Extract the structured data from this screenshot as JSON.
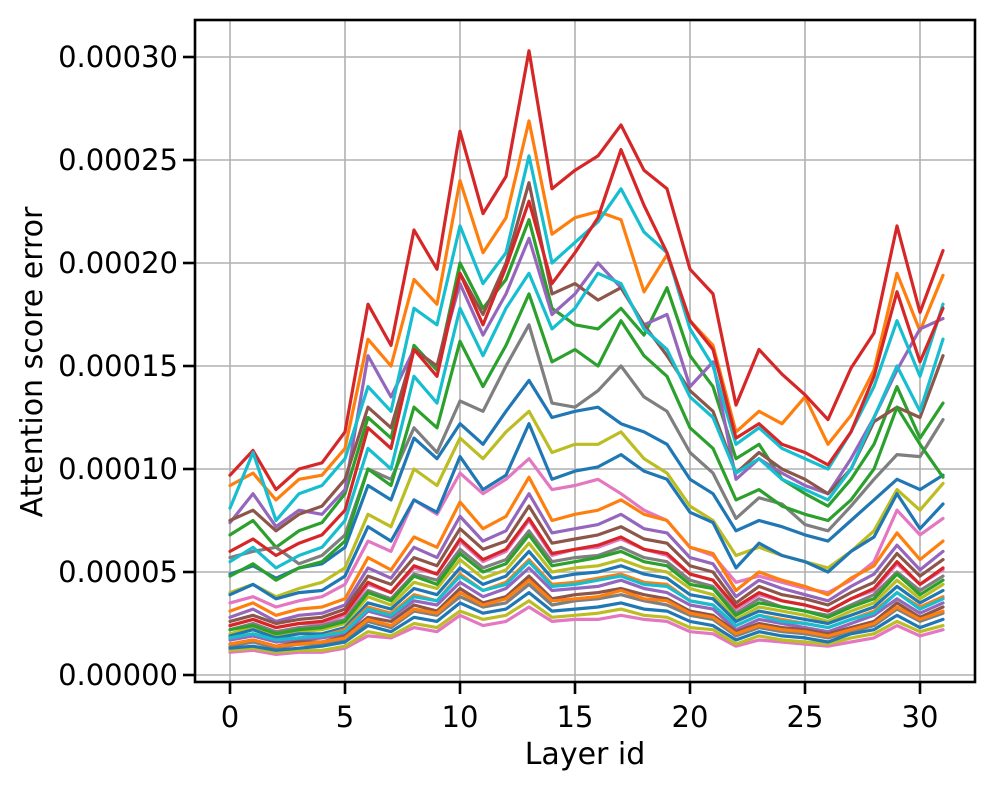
{
  "figure": {
    "background": "#ffffff"
  },
  "chart_data": {
    "type": "line",
    "title": "",
    "xlabel": "Layer id",
    "ylabel": "Attention score error",
    "grid": true,
    "grid_color": "#b0b0b0",
    "legend": "none",
    "x": [
      0,
      1,
      2,
      3,
      4,
      5,
      6,
      7,
      8,
      9,
      10,
      11,
      12,
      13,
      14,
      15,
      16,
      17,
      18,
      19,
      20,
      21,
      22,
      23,
      24,
      25,
      26,
      27,
      28,
      29,
      30,
      31
    ],
    "xlim": [
      -1.55,
      32.55
    ],
    "ylim": [
      0,
      0.00031
    ],
    "xticks": [
      0,
      5,
      10,
      15,
      20,
      25,
      30
    ],
    "ytick_values": [
      0,
      5e-05,
      0.0001,
      0.00015,
      0.0002,
      0.00025,
      0.0003
    ],
    "ytick_labels": [
      "0.00000",
      "0.00005",
      "0.00010",
      "0.00015",
      "0.00020",
      "0.00025",
      "0.00030"
    ],
    "value_scale": 1e-06,
    "value_scale_note": "series values are in units of 1e-6 (multiply by value_scale for axis units)",
    "series": [
      {
        "name": "series-0",
        "color": "#1f77b4",
        "values": [
          49,
          53,
          47,
          52,
          54,
          62,
          92,
          85,
          115,
          105,
          122,
          112,
          128,
          143,
          125,
          128,
          130,
          122,
          118,
          112,
          95,
          88,
          70,
          75,
          72,
          68,
          65,
          75,
          85,
          95,
          90,
          97
        ]
      },
      {
        "name": "series-1",
        "color": "#ff7f0e",
        "values": [
          92,
          98,
          85,
          95,
          97,
          110,
          163,
          150,
          192,
          180,
          240,
          205,
          222,
          269,
          214,
          222,
          225,
          221,
          186,
          204,
          172,
          160,
          118,
          128,
          122,
          135,
          112,
          126,
          148,
          195,
          167,
          194
        ]
      },
      {
        "name": "series-2",
        "color": "#2ca02c",
        "values": [
          68,
          75,
          62,
          70,
          74,
          88,
          125,
          115,
          160,
          148,
          200,
          178,
          192,
          221,
          178,
          170,
          168,
          178,
          165,
          188,
          155,
          140,
          105,
          112,
          95,
          88,
          82,
          95,
          112,
          140,
          115,
          132
        ]
      },
      {
        "name": "series-3",
        "color": "#d62728",
        "values": [
          97,
          109,
          90,
          100,
          103,
          118,
          180,
          160,
          216,
          197,
          264,
          224,
          242,
          303,
          236,
          245,
          252,
          267,
          245,
          236,
          197,
          185,
          131,
          158,
          146,
          136,
          124,
          149,
          166,
          218,
          176,
          206
        ]
      },
      {
        "name": "series-4",
        "color": "#9467bd",
        "values": [
          74,
          88,
          72,
          80,
          78,
          90,
          155,
          135,
          158,
          150,
          190,
          165,
          185,
          212,
          175,
          185,
          200,
          188,
          170,
          175,
          140,
          152,
          95,
          105,
          98,
          92,
          88,
          105,
          125,
          148,
          168,
          173
        ]
      },
      {
        "name": "series-5",
        "color": "#8c564b",
        "values": [
          75,
          80,
          70,
          78,
          82,
          95,
          130,
          120,
          158,
          150,
          195,
          175,
          200,
          239,
          185,
          190,
          182,
          188,
          170,
          155,
          138,
          128,
          98,
          108,
          100,
          95,
          88,
          100,
          123,
          130,
          125,
          155
        ]
      },
      {
        "name": "series-6",
        "color": "#e377c2",
        "values": [
          35,
          38,
          33,
          36,
          38,
          44,
          65,
          60,
          85,
          78,
          98,
          88,
          95,
          105,
          90,
          92,
          95,
          88,
          80,
          75,
          62,
          58,
          45,
          48,
          45,
          42,
          40,
          46,
          55,
          80,
          68,
          76
        ]
      },
      {
        "name": "series-7",
        "color": "#7f7f7f",
        "values": [
          57,
          60,
          62,
          54,
          58,
          68,
          100,
          95,
          120,
          108,
          133,
          128,
          150,
          170,
          132,
          130,
          138,
          150,
          135,
          128,
          108,
          98,
          76,
          86,
          83,
          73,
          70,
          82,
          95,
          107,
          106,
          124
        ]
      },
      {
        "name": "series-8",
        "color": "#bcbd22",
        "values": [
          40,
          44,
          38,
          42,
          45,
          52,
          78,
          72,
          100,
          92,
          115,
          105,
          118,
          128,
          108,
          112,
          112,
          118,
          105,
          98,
          82,
          75,
          58,
          62,
          58,
          55,
          52,
          60,
          70,
          90,
          80,
          93
        ]
      },
      {
        "name": "series-9",
        "color": "#17becf",
        "values": [
          81,
          108,
          75,
          88,
          92,
          105,
          140,
          128,
          178,
          170,
          218,
          190,
          205,
          252,
          200,
          210,
          220,
          236,
          215,
          205,
          168,
          150,
          112,
          120,
          110,
          105,
          100,
          118,
          140,
          172,
          145,
          180
        ]
      },
      {
        "name": "series-10",
        "color": "#1f77b4",
        "values": [
          39,
          44,
          37,
          40,
          41,
          48,
          72,
          65,
          85,
          79,
          106,
          90,
          97,
          122,
          95,
          99,
          101,
          107,
          99,
          95,
          79,
          74,
          52,
          64,
          58,
          55,
          50,
          60,
          67,
          88,
          71,
          83
        ]
      },
      {
        "name": "series-11",
        "color": "#ff7f0e",
        "values": [
          31,
          35,
          29,
          32,
          33,
          37,
          57,
          51,
          67,
          62,
          84,
          71,
          77,
          96,
          75,
          78,
          80,
          85,
          78,
          75,
          62,
          59,
          41,
          50,
          46,
          43,
          39,
          47,
          53,
          69,
          56,
          65
        ]
      },
      {
        "name": "series-12",
        "color": "#2ca02c",
        "values": [
          48,
          54,
          46,
          52,
          55,
          65,
          100,
          92,
          130,
          120,
          162,
          140,
          160,
          185,
          152,
          158,
          150,
          172,
          155,
          145,
          120,
          110,
          85,
          90,
          82,
          78,
          75,
          85,
          100,
          130,
          112,
          96
        ]
      },
      {
        "name": "series-13",
        "color": "#d62728",
        "values": [
          60,
          66,
          58,
          64,
          68,
          80,
          120,
          110,
          158,
          145,
          195,
          170,
          198,
          230,
          190,
          205,
          222,
          255,
          228,
          205,
          172,
          158,
          115,
          122,
          112,
          108,
          102,
          118,
          145,
          186,
          152,
          178
        ]
      },
      {
        "name": "series-14",
        "color": "#9467bd",
        "values": [
          28,
          32,
          26,
          29,
          30,
          34,
          52,
          47,
          62,
          57,
          77,
          65,
          70,
          88,
          69,
          71,
          73,
          78,
          71,
          69,
          57,
          54,
          38,
          46,
          42,
          39,
          36,
          43,
          49,
          63,
          51,
          60
        ]
      },
      {
        "name": "series-15",
        "color": "#8c564b",
        "values": [
          26,
          29,
          25,
          27,
          28,
          32,
          48,
          44,
          57,
          53,
          71,
          61,
          65,
          82,
          64,
          66,
          68,
          72,
          66,
          64,
          53,
          50,
          35,
          43,
          39,
          37,
          34,
          40,
          45,
          59,
          48,
          56
        ]
      },
      {
        "name": "series-16",
        "color": "#e377c2",
        "values": [
          24,
          27,
          23,
          25,
          25,
          29,
          44,
          40,
          52,
          49,
          65,
          55,
          60,
          75,
          58,
          61,
          62,
          66,
          61,
          58,
          49,
          46,
          32,
          39,
          36,
          34,
          31,
          37,
          41,
          54,
          44,
          51
        ]
      },
      {
        "name": "series-17",
        "color": "#7f7f7f",
        "values": [
          22,
          25,
          21,
          23,
          24,
          27,
          41,
          37,
          49,
          46,
          61,
          52,
          56,
          70,
          55,
          57,
          58,
          62,
          57,
          55,
          46,
          43,
          30,
          37,
          33,
          31,
          29,
          34,
          39,
          50,
          41,
          48
        ]
      },
      {
        "name": "series-18",
        "color": "#bcbd22",
        "values": [
          20,
          23,
          19,
          21,
          22,
          25,
          38,
          34,
          45,
          42,
          56,
          47,
          51,
          64,
          50,
          52,
          53,
          56,
          52,
          50,
          42,
          39,
          27,
          33,
          31,
          29,
          26,
          31,
          35,
          46,
          37,
          44
        ]
      },
      {
        "name": "series-19",
        "color": "#17becf",
        "values": [
          55,
          62,
          52,
          58,
          62,
          75,
          110,
          100,
          145,
          132,
          178,
          155,
          178,
          195,
          168,
          178,
          195,
          190,
          168,
          158,
          135,
          125,
          98,
          105,
          95,
          90,
          85,
          100,
          125,
          150,
          128,
          163
        ]
      },
      {
        "name": "series-20",
        "color": "#1f77b4",
        "values": [
          19,
          22,
          18,
          20,
          20,
          23,
          35,
          32,
          42,
          39,
          52,
          44,
          48,
          60,
          47,
          49,
          50,
          53,
          49,
          47,
          39,
          37,
          26,
          31,
          29,
          27,
          25,
          29,
          33,
          43,
          35,
          41
        ]
      },
      {
        "name": "series-21",
        "color": "#ff7f0e",
        "values": [
          18,
          20,
          17,
          18,
          19,
          22,
          33,
          30,
          39,
          36,
          49,
          41,
          45,
          56,
          44,
          45,
          47,
          49,
          45,
          44,
          36,
          34,
          24,
          29,
          27,
          25,
          23,
          27,
          31,
          40,
          33,
          38
        ]
      },
      {
        "name": "series-22",
        "color": "#2ca02c",
        "values": [
          22,
          24,
          20,
          22,
          23,
          26,
          40,
          36,
          48,
          44,
          59,
          50,
          54,
          68,
          53,
          55,
          57,
          60,
          55,
          53,
          44,
          42,
          29,
          35,
          33,
          31,
          28,
          33,
          37,
          49,
          39,
          46
        ]
      },
      {
        "name": "series-23",
        "color": "#d62728",
        "values": [
          24,
          27,
          23,
          25,
          26,
          30,
          45,
          40,
          53,
          49,
          66,
          56,
          61,
          76,
          59,
          61,
          63,
          67,
          61,
          59,
          49,
          46,
          33,
          40,
          36,
          34,
          31,
          37,
          42,
          55,
          44,
          52
        ]
      },
      {
        "name": "series-24",
        "color": "#9467bd",
        "values": [
          17,
          19,
          16,
          17,
          18,
          20,
          31,
          28,
          36,
          34,
          45,
          38,
          42,
          52,
          41,
          42,
          43,
          46,
          42,
          40,
          34,
          32,
          22,
          27,
          25,
          23,
          21,
          25,
          29,
          37,
          30,
          35
        ]
      },
      {
        "name": "series-25",
        "color": "#8c564b",
        "values": [
          15,
          17,
          14,
          16,
          16,
          19,
          28,
          26,
          34,
          31,
          42,
          35,
          38,
          48,
          37,
          39,
          40,
          42,
          39,
          37,
          31,
          29,
          21,
          25,
          23,
          22,
          20,
          23,
          26,
          35,
          28,
          33
        ]
      },
      {
        "name": "series-26",
        "color": "#e377c2",
        "values": [
          11,
          12,
          10,
          11,
          11,
          13,
          19,
          18,
          23,
          21,
          29,
          24,
          26,
          33,
          26,
          27,
          27,
          29,
          27,
          26,
          21,
          20,
          14,
          17,
          16,
          15,
          14,
          16,
          18,
          24,
          19,
          22
        ]
      },
      {
        "name": "series-27",
        "color": "#7f7f7f",
        "values": [
          14,
          16,
          13,
          15,
          15,
          17,
          26,
          23,
          31,
          29,
          38,
          33,
          35,
          44,
          34,
          36,
          37,
          39,
          36,
          34,
          29,
          27,
          19,
          23,
          21,
          20,
          18,
          21,
          24,
          32,
          26,
          30
        ]
      },
      {
        "name": "series-28",
        "color": "#bcbd22",
        "values": [
          12,
          13,
          11,
          12,
          12,
          14,
          21,
          19,
          25,
          23,
          31,
          27,
          29,
          36,
          28,
          29,
          30,
          32,
          29,
          28,
          23,
          22,
          15,
          19,
          17,
          16,
          15,
          18,
          20,
          26,
          21,
          24
        ]
      },
      {
        "name": "series-29",
        "color": "#17becf",
        "values": [
          18,
          20,
          17,
          18,
          19,
          21,
          32,
          29,
          38,
          36,
          48,
          41,
          44,
          55,
          43,
          44,
          46,
          48,
          44,
          43,
          36,
          34,
          24,
          29,
          26,
          25,
          23,
          27,
          30,
          40,
          32,
          37
        ]
      },
      {
        "name": "series-30",
        "color": "#1f77b4",
        "values": [
          13,
          14,
          12,
          13,
          14,
          16,
          24,
          21,
          28,
          26,
          35,
          30,
          32,
          40,
          31,
          32,
          33,
          35,
          32,
          31,
          26,
          24,
          17,
          21,
          19,
          18,
          16,
          20,
          22,
          29,
          23,
          27
        ]
      },
      {
        "name": "series-31",
        "color": "#ff7f0e",
        "values": [
          15,
          17,
          14,
          15,
          16,
          18,
          27,
          24,
          32,
          30,
          40,
          34,
          37,
          46,
          36,
          37,
          38,
          41,
          37,
          36,
          30,
          28,
          20,
          24,
          22,
          21,
          19,
          22,
          25,
          33,
          27,
          31
        ]
      }
    ]
  }
}
